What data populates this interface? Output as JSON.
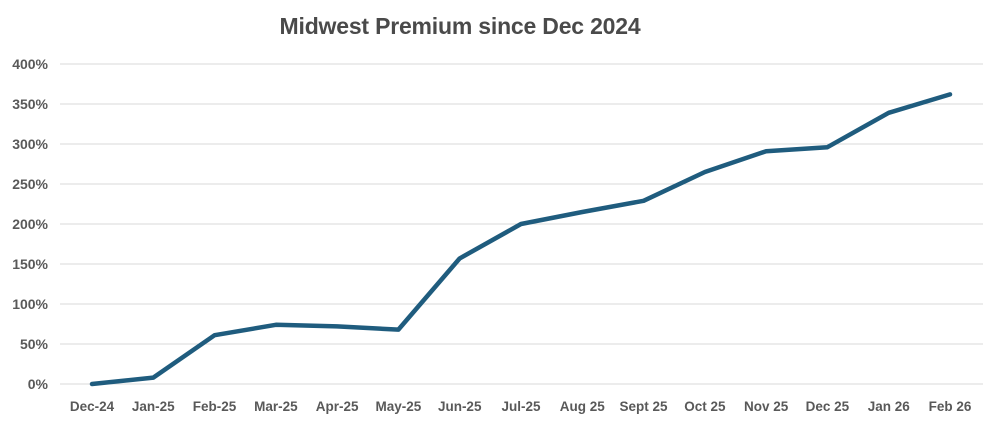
{
  "chart_data": {
    "type": "line",
    "title": "Midwest Premium since Dec 2024",
    "x": [
      "Dec-24",
      "Jan-25",
      "Feb-25",
      "Mar-25",
      "Apr-25",
      "May-25",
      "Jun-25",
      "Jul-25",
      "Aug 25",
      "Sept 25",
      "Oct 25",
      "Nov 25",
      "Dec 25",
      "Jan 26",
      "Feb 26"
    ],
    "series": [
      {
        "name": "Midwest Premium",
        "values": [
          0,
          8,
          61,
          74,
          72,
          68,
          157,
          200,
          215,
          229,
          265,
          291,
          296,
          339,
          362
        ]
      }
    ],
    "xlabel": "",
    "ylabel": "",
    "ylim": [
      0,
      400
    ],
    "y_tick_step": 50,
    "y_tick_labels": [
      "400%",
      "350%",
      "300%",
      "250%",
      "200%",
      "150%",
      "100%",
      "50%",
      "0%"
    ],
    "y_unit": "%",
    "grid": "horizontal-only",
    "legend_position": "none",
    "colors": {
      "line": "#1f5c7e",
      "gridline": "#d9d9d9",
      "title_text": "#4a4a4a",
      "tick_text": "#595959",
      "background": "#ffffff"
    }
  }
}
